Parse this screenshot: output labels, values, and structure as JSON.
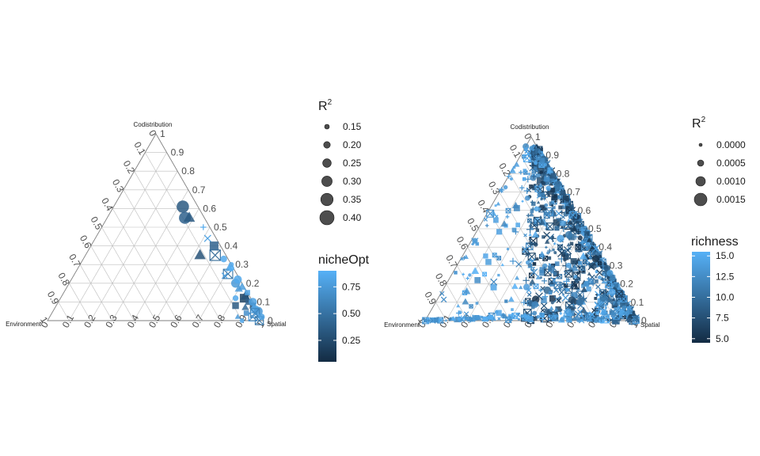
{
  "chart_data": [
    {
      "type": "scatter",
      "subtype": "ternary",
      "axes": {
        "top": "Codistribution",
        "left": "Environment",
        "right": "Spatial",
        "ticks": [
          "0",
          "0.1",
          "0.2",
          "0.3",
          "0.4",
          "0.5",
          "0.6",
          "0.7",
          "0.8",
          "0.9",
          "1"
        ],
        "grid_step": 0.1
      },
      "size_legend": {
        "title": "R",
        "superscript": "2",
        "labels": [
          "0.15",
          "0.20",
          "0.25",
          "0.30",
          "0.35",
          "0.40"
        ],
        "values": [
          0.15,
          0.2,
          0.25,
          0.3,
          0.35,
          0.4
        ]
      },
      "color_legend": {
        "title": "nicheOpt",
        "labels": [
          "0.75",
          "0.50",
          "0.25"
        ],
        "values": [
          0.75,
          0.5,
          0.25
        ],
        "range": [
          0.05,
          0.9
        ],
        "low_color": "#132B43",
        "high_color": "#56B1F7"
      },
      "points": [
        {
          "env": 0.07,
          "cod": 0.61,
          "shape": "circle",
          "r2": 0.35,
          "c": 0.35
        },
        {
          "env": 0.09,
          "cod": 0.55,
          "shape": "circle",
          "r2": 0.34,
          "c": 0.4
        },
        {
          "env": 0.07,
          "cod": 0.55,
          "shape": "triangle",
          "r2": 0.3,
          "c": 0.35
        },
        {
          "env": 0.12,
          "cod": 0.35,
          "shape": "triangle",
          "r2": 0.3,
          "c": 0.3
        },
        {
          "env": 0.04,
          "cod": 0.44,
          "shape": "cross",
          "r2": 0.2,
          "c": 0.8
        },
        {
          "env": 0.03,
          "cod": 0.5,
          "shape": "plus",
          "r2": 0.18,
          "c": 0.85
        },
        {
          "env": 0.03,
          "cod": 0.4,
          "shape": "square",
          "r2": 0.28,
          "c": 0.4
        },
        {
          "env": 0.05,
          "cod": 0.35,
          "shape": "boxx",
          "r2": 0.3,
          "c": 0.45
        },
        {
          "env": 0.04,
          "cod": 0.25,
          "shape": "boxx",
          "r2": 0.27,
          "c": 0.5
        },
        {
          "env": 0.02,
          "cod": 0.28,
          "shape": "triangle",
          "r2": 0.22,
          "c": 0.8
        },
        {
          "env": 0.03,
          "cod": 0.2,
          "shape": "circle",
          "r2": 0.26,
          "c": 0.75
        },
        {
          "env": 0.01,
          "cod": 0.22,
          "shape": "circle",
          "r2": 0.24,
          "c": 0.85
        },
        {
          "env": 0.01,
          "cod": 0.18,
          "shape": "triangle",
          "r2": 0.22,
          "c": 0.8
        },
        {
          "env": 0.03,
          "cod": 0.12,
          "shape": "square",
          "r2": 0.28,
          "c": 0.2
        },
        {
          "env": 0.02,
          "cod": 0.13,
          "shape": "triangle",
          "r2": 0.26,
          "c": 0.3
        },
        {
          "env": 0.09,
          "cod": 0.08,
          "shape": "square",
          "r2": 0.22,
          "c": 0.35
        },
        {
          "env": 0.02,
          "cod": 0.1,
          "shape": "square",
          "r2": 0.2,
          "c": 0.4
        },
        {
          "env": 0.01,
          "cod": 0.08,
          "shape": "square",
          "r2": 0.2,
          "c": 0.3
        },
        {
          "env": 0.0,
          "cod": 0.1,
          "shape": "circle",
          "r2": 0.24,
          "c": 0.8
        },
        {
          "env": 0.01,
          "cod": 0.06,
          "shape": "circle",
          "r2": 0.25,
          "c": 0.85
        },
        {
          "env": 0.0,
          "cod": 0.05,
          "shape": "circle",
          "r2": 0.26,
          "c": 0.75
        },
        {
          "env": 0.02,
          "cod": 0.04,
          "shape": "boxx",
          "r2": 0.26,
          "c": 0.6
        },
        {
          "env": 0.04,
          "cod": 0.02,
          "shape": "boxx",
          "r2": 0.24,
          "c": 0.7
        },
        {
          "env": 0.02,
          "cod": 0.0,
          "shape": "boxx",
          "r2": 0.24,
          "c": 0.55
        },
        {
          "env": 0.0,
          "cod": 0.02,
          "shape": "circle",
          "r2": 0.2,
          "c": 0.8
        },
        {
          "env": 0.06,
          "cod": 0.04,
          "shape": "square",
          "r2": 0.18,
          "c": 0.7
        },
        {
          "env": 0.11,
          "cod": 0.02,
          "shape": "triangle",
          "r2": 0.16,
          "c": 0.75
        },
        {
          "env": 0.1,
          "cod": 0.0,
          "shape": "circle",
          "r2": 0.15,
          "c": 0.85
        },
        {
          "env": 0.02,
          "cod": 0.33,
          "shape": "circle",
          "r2": 0.2,
          "c": 0.85
        },
        {
          "env": 0.01,
          "cod": 0.28,
          "shape": "circle",
          "r2": 0.18,
          "c": 0.9
        },
        {
          "env": 0.06,
          "cod": 0.24,
          "shape": "cross",
          "r2": 0.18,
          "c": 0.8
        },
        {
          "env": 0.0,
          "cod": 0.3,
          "shape": "circle",
          "r2": 0.16,
          "c": 0.85
        },
        {
          "env": 0.05,
          "cod": 0.07,
          "shape": "triangle",
          "r2": 0.2,
          "c": 0.45
        },
        {
          "env": 0.07,
          "cod": 0.12,
          "shape": "circle",
          "r2": 0.18,
          "c": 0.85
        },
        {
          "env": 0.0,
          "cod": 0.15,
          "shape": "square",
          "r2": 0.18,
          "c": 0.8
        },
        {
          "env": 0.03,
          "cod": 0.17,
          "shape": "triangle",
          "r2": 0.22,
          "c": 0.75
        }
      ]
    },
    {
      "type": "scatter",
      "subtype": "ternary",
      "axes": {
        "top": "Codistribution",
        "left": "Environment",
        "right": "Spatial",
        "ticks": [
          "0",
          "0.1",
          "0.2",
          "0.3",
          "0.4",
          "0.5",
          "0.6",
          "0.7",
          "0.8",
          "0.9",
          "1"
        ],
        "grid_step": 0.1
      },
      "size_legend": {
        "title": "R",
        "superscript": "2",
        "labels": [
          "0.0000",
          "0.0005",
          "0.0010",
          "0.0015"
        ],
        "values": [
          0.0,
          0.0005,
          0.001,
          0.0015
        ]
      },
      "color_legend": {
        "title": "richness",
        "labels": [
          "15.0",
          "12.5",
          "10.0",
          "7.5",
          "5.0"
        ],
        "values": [
          15.0,
          12.5,
          10.0,
          7.5,
          5.0
        ],
        "range": [
          4.5,
          15.5
        ],
        "low_color": "#132B43",
        "high_color": "#56B1F7"
      }
    }
  ]
}
